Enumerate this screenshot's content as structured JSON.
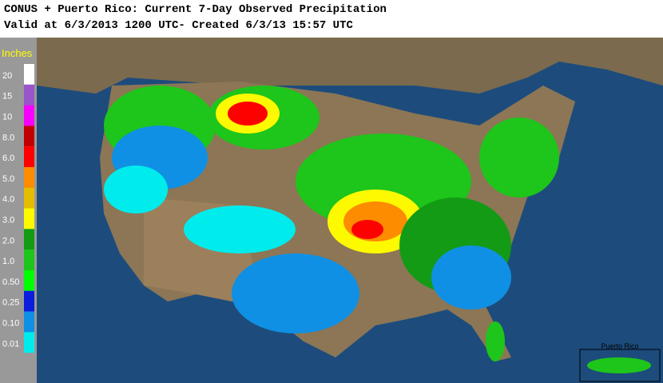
{
  "header": {
    "title": "CONUS + Puerto Rico: Current 7-Day Observed Precipitation",
    "subtitle": "Valid at 6/3/2013 1200 UTC- Created 6/3/13 15:57 UTC"
  },
  "legend": {
    "title": "Inches",
    "items": [
      {
        "label": "20",
        "color": "#ffffff"
      },
      {
        "label": "15",
        "color": "#9955c9"
      },
      {
        "label": "10",
        "color": "#f800fd"
      },
      {
        "label": "8.0",
        "color": "#c20000"
      },
      {
        "label": "6.0",
        "color": "#fd0000"
      },
      {
        "label": "5.0",
        "color": "#fd8c00"
      },
      {
        "label": "4.0",
        "color": "#e5bc00"
      },
      {
        "label": "3.0",
        "color": "#fdf900"
      },
      {
        "label": "2.0",
        "color": "#139b15"
      },
      {
        "label": "1.0",
        "color": "#1ec51a"
      },
      {
        "label": "0.50",
        "color": "#00fd00"
      },
      {
        "label": "0.25",
        "color": "#0c1cdc"
      },
      {
        "label": "0.10",
        "color": "#0f90e4"
      },
      {
        "label": "0.01",
        "color": "#00ecec"
      }
    ]
  },
  "inset": {
    "label": "Puerto Rico"
  }
}
